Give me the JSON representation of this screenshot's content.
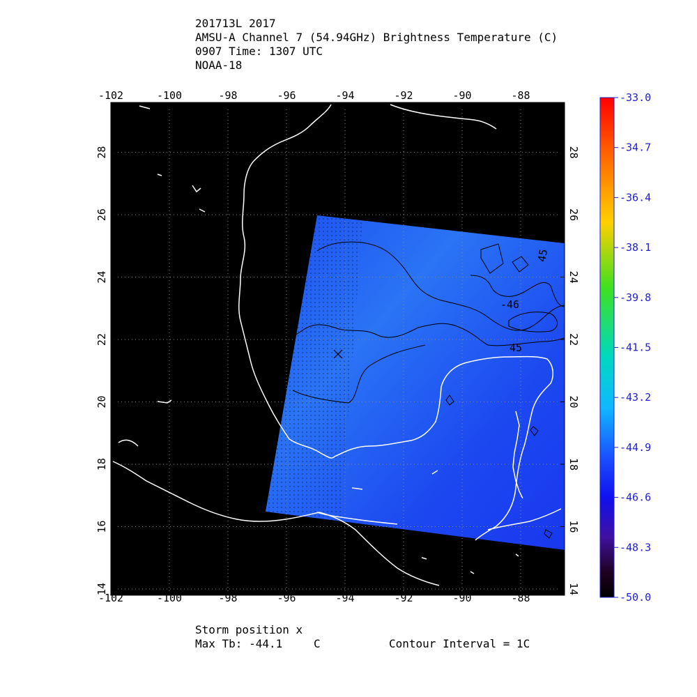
{
  "header": {
    "storm_id": "201713L 2017",
    "product": "AMSU-A Channel 7 (54.94GHz) Brightness Temperature (C)",
    "time": "0907 Time: 1307 UTC",
    "satellite": "NOAA-18"
  },
  "map": {
    "lon_ticks": [
      "-102",
      "-100",
      "-98",
      "-96",
      "-94",
      "-92",
      "-90",
      "-88"
    ],
    "lon_values": [
      -102,
      -100,
      -98,
      -96,
      -94,
      -92,
      -90,
      -88
    ],
    "lat_ticks": [
      "14",
      "16",
      "18",
      "20",
      "22",
      "24",
      "26",
      "28"
    ],
    "lat_values": [
      14,
      16,
      18,
      20,
      22,
      24,
      26,
      28
    ],
    "lon_range": [
      -102,
      -86.5
    ],
    "lat_range": [
      13.8,
      29.6
    ],
    "background": "#000000",
    "field_color": "#1f4ff5",
    "coastline_color": "#ffffff",
    "contour_labels": [
      "45",
      "-46",
      "45"
    ],
    "storm_marker": "×",
    "storm_position": {
      "lon": -94.3,
      "lat": 21.8
    }
  },
  "colorbar": {
    "labels": [
      "-33.0",
      "-34.7",
      "-36.4",
      "-38.1",
      "-39.8",
      "-41.5",
      "-43.2",
      "-44.9",
      "-46.6",
      "-48.3",
      "-50.0"
    ],
    "values": [
      -33.0,
      -34.7,
      -36.4,
      -38.1,
      -39.8,
      -41.5,
      -43.2,
      -44.9,
      -46.6,
      -48.3,
      -50.0
    ],
    "label_color": "#2020d0"
  },
  "footer": {
    "storm_position_label": "Storm position x",
    "max_tb_label": "Max Tb: -44.1",
    "max_tb_unit": "C",
    "contour_interval": "Contour Interval = 1C"
  }
}
